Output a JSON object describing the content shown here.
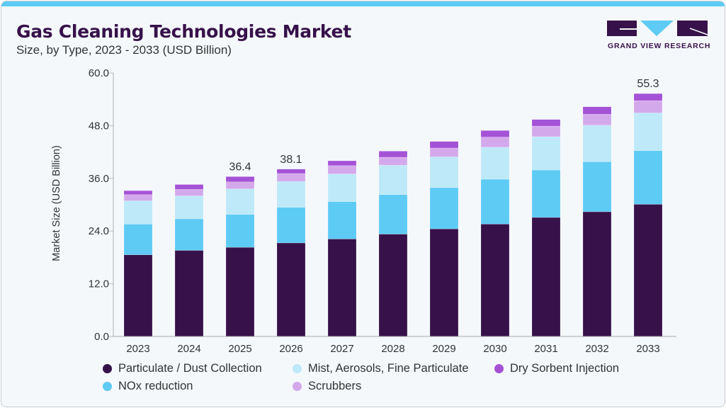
{
  "header": {
    "title": "Gas Cleaning Technologies Market",
    "subtitle": "Size, by Type, 2023 - 2033 (USD Billion)"
  },
  "logo": {
    "text": "GRAND VIEW RESEARCH",
    "accent": "#5ecbf5",
    "brand": "#37114a"
  },
  "chart_data": {
    "type": "bar",
    "stacked": true,
    "ylabel": "Market Size (USD Billion)",
    "ylim": [
      0,
      60
    ],
    "yticks": [
      "0.0",
      "12.0",
      "24.0",
      "36.0",
      "48.0",
      "60.0"
    ],
    "categories": [
      "2023",
      "2024",
      "2025",
      "2026",
      "2027",
      "2028",
      "2029",
      "2030",
      "2031",
      "2032",
      "2033"
    ],
    "series": [
      {
        "name": "Particulate / Dust Collection",
        "color": "#37114a",
        "values": [
          18.6,
          19.6,
          20.3,
          21.3,
          22.2,
          23.3,
          24.5,
          25.6,
          27.1,
          28.4,
          30.1
        ]
      },
      {
        "name": "NOx reduction",
        "color": "#5ecbf5",
        "values": [
          7.0,
          7.2,
          7.5,
          8.1,
          8.5,
          9.0,
          9.4,
          10.2,
          10.8,
          11.4,
          12.2
        ]
      },
      {
        "name": "Mist, Aerosols, Fine Particulate",
        "color": "#bde9f9",
        "values": [
          5.3,
          5.2,
          5.8,
          5.9,
          6.3,
          6.7,
          7.0,
          7.3,
          7.6,
          8.3,
          8.6
        ]
      },
      {
        "name": "Scrubbers",
        "color": "#d4a9ec",
        "values": [
          1.4,
          1.5,
          1.6,
          1.8,
          1.9,
          1.8,
          2.0,
          2.3,
          2.4,
          2.5,
          2.8
        ]
      },
      {
        "name": "Dry Sorbent Injection",
        "color": "#a452d6",
        "values": [
          0.9,
          1.1,
          1.2,
          1.0,
          1.1,
          1.4,
          1.5,
          1.5,
          1.5,
          1.7,
          1.6
        ]
      }
    ],
    "data_labels": {
      "2025": "36.4",
      "2026": "38.1",
      "2033": "55.3"
    },
    "grid": false,
    "legend_position": "bottom"
  }
}
